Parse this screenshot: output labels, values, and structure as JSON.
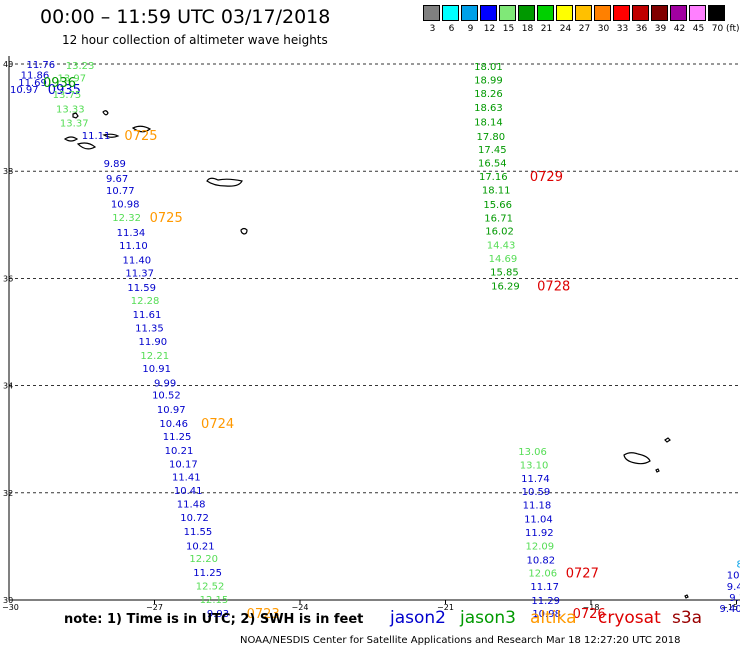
{
  "header": {
    "title": "00:00 – 11:59 UTC 03/17/2018",
    "subtitle": "12 hour collection of altimeter wave heights"
  },
  "color_scale": {
    "unit": "(ft)",
    "bins": [
      {
        "label": "3",
        "color": "#808080"
      },
      {
        "label": "6",
        "color": "#00ffff"
      },
      {
        "label": "9",
        "color": "#00a0e8"
      },
      {
        "label": "12",
        "color": "#0000ff"
      },
      {
        "label": "15",
        "color": "#80e878"
      },
      {
        "label": "18",
        "color": "#009800"
      },
      {
        "label": "21",
        "color": "#00d000"
      },
      {
        "label": "24",
        "color": "#ffff00"
      },
      {
        "label": "27",
        "color": "#ffc000"
      },
      {
        "label": "30",
        "color": "#ff8000"
      },
      {
        "label": "33",
        "color": "#ff0000"
      },
      {
        "label": "36",
        "color": "#c00000"
      },
      {
        "label": "39",
        "color": "#800000"
      },
      {
        "label": "42",
        "color": "#a000a0"
      },
      {
        "label": "45",
        "color": "#ff80ff"
      },
      {
        "label": "70",
        "color": "#000000"
      }
    ]
  },
  "axes": {
    "lat_labels": [
      "40",
      "38",
      "36",
      "34",
      "32",
      "30"
    ],
    "lon_labels": [
      "−30",
      "−27",
      "−24",
      "−21",
      "−18",
      "−15"
    ]
  },
  "observations": [
    {
      "text": "11.76",
      "color": "#0000cc",
      "lat": 40.0,
      "lon": -29.64
    },
    {
      "text": "11.86",
      "color": "#0000cc",
      "lat": 39.8,
      "lon": -29.76
    },
    {
      "text": "11.69",
      "color": "#0000cc",
      "lat": 39.66,
      "lon": -29.81
    },
    {
      "text": "10.97",
      "color": "#0000cc",
      "lat": 39.53,
      "lon": -29.98
    },
    {
      "text": "0935",
      "color": "#0000cc",
      "lat": 39.53,
      "lon": -29.2
    },
    {
      "text": "13.23",
      "color": "#55dd55",
      "lat": 39.98,
      "lon": -28.83
    },
    {
      "text": "13.97",
      "color": "#55dd55",
      "lat": 39.75,
      "lon": -29.0
    },
    {
      "text": "0936",
      "color": "#009900",
      "lat": 39.66,
      "lon": -29.3
    },
    {
      "text": "13.75",
      "color": "#55dd55",
      "lat": 39.44,
      "lon": -29.1
    },
    {
      "text": "13.33",
      "color": "#55dd55",
      "lat": 39.17,
      "lon": -29.03
    },
    {
      "text": "13.37",
      "color": "#55dd55",
      "lat": 38.91,
      "lon": -28.95
    },
    {
      "text": "11.11",
      "color": "#0000cc",
      "lat": 38.68,
      "lon": -28.5
    },
    {
      "text": "0725",
      "color": "#ff9900",
      "lat": 38.68,
      "lon": -27.62
    },
    {
      "text": "9.89",
      "color": "#0000cc",
      "lat": 38.15,
      "lon": -28.05
    },
    {
      "text": "9.67",
      "color": "#0000cc",
      "lat": 37.87,
      "lon": -28.0
    },
    {
      "text": "10.77",
      "color": "#0000cc",
      "lat": 37.65,
      "lon": -28.0
    },
    {
      "text": "10.98",
      "color": "#0000cc",
      "lat": 37.4,
      "lon": -27.9
    },
    {
      "text": "12.32",
      "color": "#55dd55",
      "lat": 37.15,
      "lon": -27.87
    },
    {
      "text": "0725",
      "color": "#ff9900",
      "lat": 37.15,
      "lon": -27.1
    },
    {
      "text": "11.34",
      "color": "#0000cc",
      "lat": 36.87,
      "lon": -27.78
    },
    {
      "text": "11.10",
      "color": "#0000cc",
      "lat": 36.62,
      "lon": -27.73
    },
    {
      "text": "11.40",
      "color": "#0000cc",
      "lat": 36.35,
      "lon": -27.66
    },
    {
      "text": "11.37",
      "color": "#0000cc",
      "lat": 36.11,
      "lon": -27.6
    },
    {
      "text": "11.59",
      "color": "#0000cc",
      "lat": 35.84,
      "lon": -27.56
    },
    {
      "text": "12.28",
      "color": "#55dd55",
      "lat": 35.6,
      "lon": -27.49
    },
    {
      "text": "11.61",
      "color": "#0000cc",
      "lat": 35.34,
      "lon": -27.45
    },
    {
      "text": "11.35",
      "color": "#0000cc",
      "lat": 35.08,
      "lon": -27.4
    },
    {
      "text": "11.90",
      "color": "#0000cc",
      "lat": 34.83,
      "lon": -27.33
    },
    {
      "text": "12.21",
      "color": "#55dd55",
      "lat": 34.57,
      "lon": -27.29
    },
    {
      "text": "10.91",
      "color": "#0000cc",
      "lat": 34.33,
      "lon": -27.25
    },
    {
      "text": "9.99",
      "color": "#0000cc",
      "lat": 34.06,
      "lon": -27.01
    },
    {
      "text": "10.52",
      "color": "#0000cc",
      "lat": 33.83,
      "lon": -27.05
    },
    {
      "text": "10.97",
      "color": "#0000cc",
      "lat": 33.56,
      "lon": -26.95
    },
    {
      "text": "10.46",
      "color": "#0000cc",
      "lat": 33.3,
      "lon": -26.9
    },
    {
      "text": "0724",
      "color": "#ff9900",
      "lat": 33.3,
      "lon": -26.04
    },
    {
      "text": "11.25",
      "color": "#0000cc",
      "lat": 33.06,
      "lon": -26.83
    },
    {
      "text": "10.21",
      "color": "#0000cc",
      "lat": 32.8,
      "lon": -26.79
    },
    {
      "text": "10.17",
      "color": "#0000cc",
      "lat": 32.55,
      "lon": -26.7
    },
    {
      "text": "11.41",
      "color": "#0000cc",
      "lat": 32.3,
      "lon": -26.64
    },
    {
      "text": "10.41",
      "color": "#0000cc",
      "lat": 32.05,
      "lon": -26.6
    },
    {
      "text": "11.48",
      "color": "#0000cc",
      "lat": 31.8,
      "lon": -26.54
    },
    {
      "text": "10.72",
      "color": "#0000cc",
      "lat": 31.55,
      "lon": -26.47
    },
    {
      "text": "11.55",
      "color": "#0000cc",
      "lat": 31.29,
      "lon": -26.4
    },
    {
      "text": "10.21",
      "color": "#0000cc",
      "lat": 31.02,
      "lon": -26.35
    },
    {
      "text": "12.20",
      "color": "#55dd55",
      "lat": 30.78,
      "lon": -26.28
    },
    {
      "text": "11.25",
      "color": "#0000cc",
      "lat": 30.52,
      "lon": -26.2
    },
    {
      "text": "12.52",
      "color": "#55dd55",
      "lat": 30.27,
      "lon": -26.15
    },
    {
      "text": "12.15",
      "color": "#55dd55",
      "lat": 30.02,
      "lon": -26.07
    },
    {
      "text": "9.93",
      "color": "#0000cc",
      "lat": 29.76,
      "lon": -25.92
    },
    {
      "text": "0723",
      "color": "#ff9900",
      "lat": 29.76,
      "lon": -25.1
    },
    {
      "text": "18.01",
      "color": "#009900",
      "lat": 39.96,
      "lon": -20.41
    },
    {
      "text": "18.99",
      "color": "#009900",
      "lat": 39.71,
      "lon": -20.41
    },
    {
      "text": "18.26",
      "color": "#009900",
      "lat": 39.46,
      "lon": -20.41
    },
    {
      "text": "18.63",
      "color": "#009900",
      "lat": 39.2,
      "lon": -20.41
    },
    {
      "text": "18.14",
      "color": "#009900",
      "lat": 38.93,
      "lon": -20.41
    },
    {
      "text": "17.80",
      "color": "#009900",
      "lat": 38.66,
      "lon": -20.36
    },
    {
      "text": "17.45",
      "color": "#009900",
      "lat": 38.41,
      "lon": -20.33
    },
    {
      "text": "16.54",
      "color": "#009900",
      "lat": 38.16,
      "lon": -20.33
    },
    {
      "text": "17.16",
      "color": "#009900",
      "lat": 37.91,
      "lon": -20.31
    },
    {
      "text": "0729",
      "color": "#dd0000",
      "lat": 37.91,
      "lon": -19.26
    },
    {
      "text": "18.11",
      "color": "#009900",
      "lat": 37.66,
      "lon": -20.25
    },
    {
      "text": "15.66",
      "color": "#009900",
      "lat": 37.39,
      "lon": -20.22
    },
    {
      "text": "16.71",
      "color": "#009900",
      "lat": 37.14,
      "lon": -20.2
    },
    {
      "text": "16.02",
      "color": "#009900",
      "lat": 36.89,
      "lon": -20.18
    },
    {
      "text": "14.43",
      "color": "#55dd55",
      "lat": 36.63,
      "lon": -20.15
    },
    {
      "text": "14.69",
      "color": "#55dd55",
      "lat": 36.38,
      "lon": -20.11
    },
    {
      "text": "15.85",
      "color": "#009900",
      "lat": 36.13,
      "lon": -20.08
    },
    {
      "text": "16.29",
      "color": "#009900",
      "lat": 35.87,
      "lon": -20.06
    },
    {
      "text": "0728",
      "color": "#dd0000",
      "lat": 35.87,
      "lon": -19.11
    },
    {
      "text": "13.06",
      "color": "#55dd55",
      "lat": 32.78,
      "lon": -19.5
    },
    {
      "text": "13.10",
      "color": "#55dd55",
      "lat": 32.53,
      "lon": -19.47
    },
    {
      "text": "11.74",
      "color": "#0000cc",
      "lat": 32.28,
      "lon": -19.44
    },
    {
      "text": "10.59",
      "color": "#0000cc",
      "lat": 32.03,
      "lon": -19.43
    },
    {
      "text": "11.18",
      "color": "#0000cc",
      "lat": 31.78,
      "lon": -19.41
    },
    {
      "text": "11.04",
      "color": "#0000cc",
      "lat": 31.52,
      "lon": -19.38
    },
    {
      "text": "11.92",
      "color": "#0000cc",
      "lat": 31.27,
      "lon": -19.36
    },
    {
      "text": "12.09",
      "color": "#55dd55",
      "lat": 31.02,
      "lon": -19.35
    },
    {
      "text": "10.82",
      "color": "#0000cc",
      "lat": 30.76,
      "lon": -19.33
    },
    {
      "text": "12.06",
      "color": "#55dd55",
      "lat": 30.51,
      "lon": -19.29
    },
    {
      "text": "0727",
      "color": "#dd0000",
      "lat": 30.51,
      "lon": -18.52
    },
    {
      "text": "11.17",
      "color": "#0000cc",
      "lat": 30.26,
      "lon": -19.25
    },
    {
      "text": "11.29",
      "color": "#0000cc",
      "lat": 30.0,
      "lon": -19.23
    },
    {
      "text": "10.98",
      "color": "#0000cc",
      "lat": 29.76,
      "lon": -19.21
    },
    {
      "text": "0726",
      "color": "#dd0000",
      "lat": 29.76,
      "lon": -18.38
    },
    {
      "text": "8",
      "color": "#00a0e8",
      "lat": 30.68,
      "lon": -15.0
    },
    {
      "text": "10",
      "color": "#0000cc",
      "lat": 30.48,
      "lon": -15.2
    },
    {
      "text": "9.4",
      "color": "#0000cc",
      "lat": 30.26,
      "lon": -15.2
    },
    {
      "text": "9.1",
      "color": "#0000cc",
      "lat": 30.06,
      "lon": -15.15
    },
    {
      "text": "9.40",
      "color": "#0000cc",
      "lat": 29.85,
      "lon": -15.35
    }
  ],
  "footer": {
    "note": "note:  1) Time is in UTC;  2) SWH is in feet",
    "satellites": [
      {
        "name": "jason2",
        "color": "#0000cc"
      },
      {
        "name": "jason3",
        "color": "#009900"
      },
      {
        "name": "altika",
        "color": "#ff9900"
      },
      {
        "name": "cryosat",
        "color": "#dd0000"
      },
      {
        "name": "s3a",
        "color": "#990000"
      }
    ],
    "credit": "NOAA/NESDIS Center for Satellite Applications and Research      Mar 18 12:27:20 UTC 2018"
  }
}
